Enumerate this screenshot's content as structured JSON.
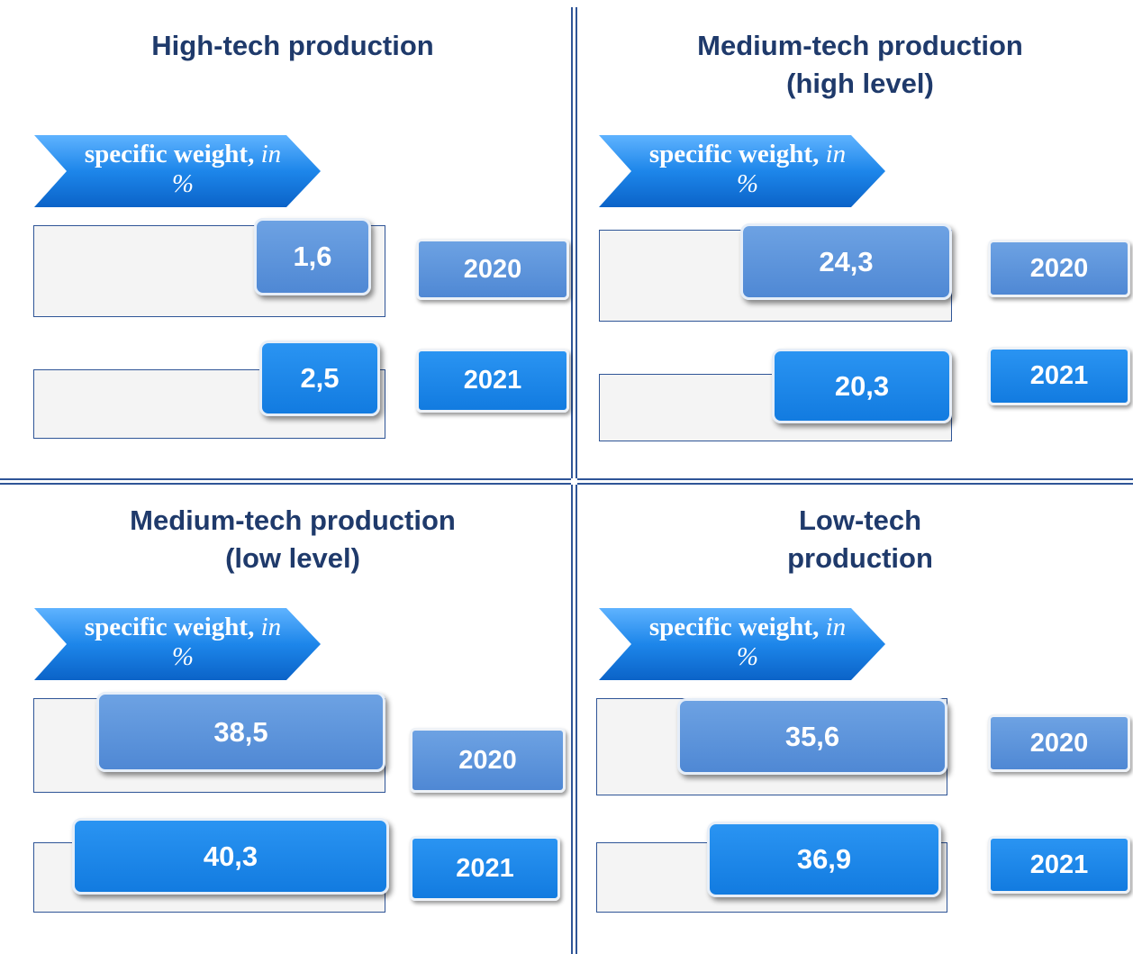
{
  "panels": [
    {
      "title": [
        "High-tech production"
      ],
      "label": {
        "main": "specific weight,",
        "unit": "in %"
      },
      "rows": [
        {
          "value": "1,6",
          "year": "2020"
        },
        {
          "value": "2,5",
          "year": "2021"
        }
      ]
    },
    {
      "title": [
        "Medium-tech production",
        "(high level)"
      ],
      "label": {
        "main": "specific weight,",
        "unit": "in %"
      },
      "rows": [
        {
          "value": "24,3",
          "year": "2020"
        },
        {
          "value": "20,3",
          "year": "2021"
        }
      ]
    },
    {
      "title": [
        "Medium-tech production",
        "(low level)"
      ],
      "label": {
        "main": "specific weight,",
        "unit": "in %"
      },
      "rows": [
        {
          "value": "38,5",
          "year": "2020"
        },
        {
          "value": "40,3",
          "year": "2021"
        }
      ]
    },
    {
      "title": [
        "Low-tech",
        "production"
      ],
      "label": {
        "main": "specific weight,",
        "unit": "in %"
      },
      "rows": [
        {
          "value": "35,6",
          "year": "2020"
        },
        {
          "value": "36,9",
          "year": "2021"
        }
      ]
    }
  ]
}
